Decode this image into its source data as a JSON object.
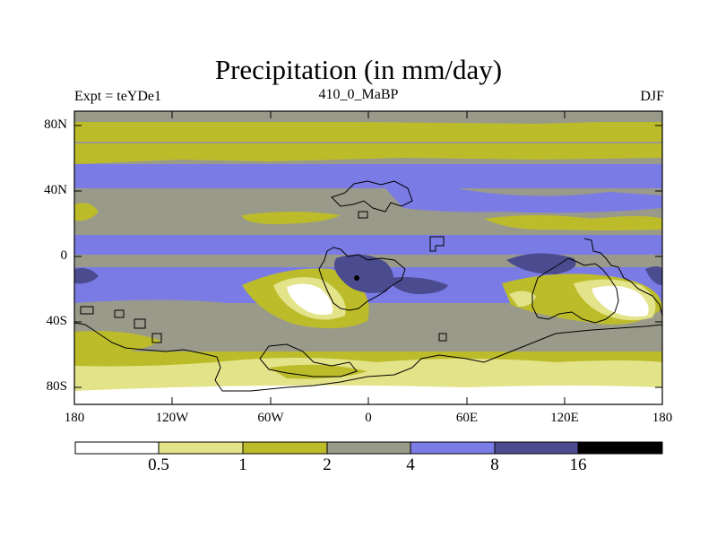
{
  "title": "Precipitation (in mm/day)",
  "experiment_label": "Expt = teYDe1",
  "period_label": "410_0_MaBP",
  "season_label": "DJF",
  "map": {
    "latitude_ticks": [
      "80N",
      "40N",
      "0",
      "40S",
      "80S"
    ],
    "longitude_ticks": [
      "180",
      "120W",
      "60W",
      "0",
      "60E",
      "120E",
      "180"
    ],
    "colors": {
      "lt_0_5": "#ffffff",
      "c0_5_1": "#e3e38a",
      "c1_2": "#bcbc2b",
      "c2_4": "#9a9a8a",
      "c4_8": "#7b7be6",
      "c8_16": "#4b4b8f",
      "gt_16": "#000000"
    }
  },
  "colorbar": {
    "labels": [
      "0.5",
      "1",
      "2",
      "4",
      "8",
      "16"
    ],
    "colors": [
      "#ffffff",
      "#e3e38a",
      "#bcbc2b",
      "#9a9a8a",
      "#7b7be6",
      "#4b4b8f",
      "#000000"
    ]
  }
}
